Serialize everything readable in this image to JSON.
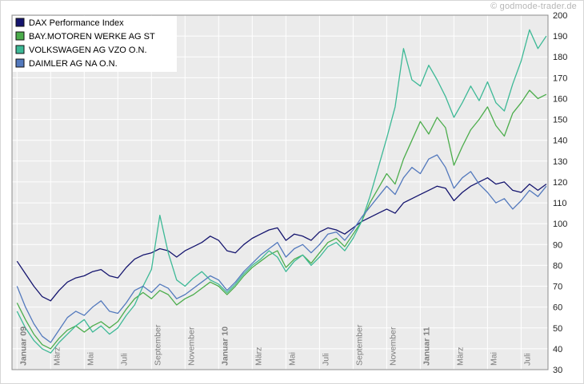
{
  "watermark": "© godmode-trader.de",
  "chart_data": {
    "type": "line",
    "title": "",
    "xlabel": "",
    "ylabel": "",
    "ylim": [
      30,
      200
    ],
    "grid": true,
    "legend_position": "top-left",
    "plot_bg": "#ebebeb",
    "grid_color": "#ffffff",
    "border_color": "#8c8c8c",
    "x_label_color": "#7d7d7d",
    "y_label_color": "#222222",
    "x_unit": "months since Januar 2009 (0 = Januar 09)",
    "y_ticks": [
      30,
      40,
      50,
      60,
      70,
      80,
      90,
      100,
      110,
      120,
      130,
      140,
      150,
      160,
      170,
      180,
      190,
      200
    ],
    "x_ticks": [
      {
        "m": 0,
        "label": "Januar 09",
        "bold": true
      },
      {
        "m": 2,
        "label": "März",
        "bold": false
      },
      {
        "m": 4,
        "label": "Mai",
        "bold": false
      },
      {
        "m": 6,
        "label": "Juli",
        "bold": false
      },
      {
        "m": 8,
        "label": "September",
        "bold": false
      },
      {
        "m": 10,
        "label": "November",
        "bold": false
      },
      {
        "m": 12,
        "label": "Januar 10",
        "bold": true
      },
      {
        "m": 14,
        "label": "März",
        "bold": false
      },
      {
        "m": 16,
        "label": "Mai",
        "bold": false
      },
      {
        "m": 18,
        "label": "Juli",
        "bold": false
      },
      {
        "m": 20,
        "label": "September",
        "bold": false
      },
      {
        "m": 22,
        "label": "November",
        "bold": false
      },
      {
        "m": 24,
        "label": "Januar 11",
        "bold": true
      },
      {
        "m": 26,
        "label": "März",
        "bold": false
      },
      {
        "m": 28,
        "label": "Mai",
        "bold": false
      },
      {
        "m": 30,
        "label": "Juli",
        "bold": false
      }
    ],
    "x": [
      0,
      0.5,
      1,
      1.5,
      2,
      2.5,
      3,
      3.5,
      4,
      4.5,
      5,
      5.5,
      6,
      6.5,
      7,
      7.5,
      8,
      8.5,
      9,
      9.5,
      10,
      10.5,
      11,
      11.5,
      12,
      12.5,
      13,
      13.5,
      14,
      14.5,
      15,
      15.5,
      16,
      16.5,
      17,
      17.5,
      18,
      18.5,
      19,
      19.5,
      20,
      20.5,
      21,
      21.5,
      22,
      22.5,
      23,
      23.5,
      24,
      24.5,
      25,
      25.5,
      26,
      26.5,
      27,
      27.5,
      28,
      28.5,
      29,
      29.5,
      30,
      30.5,
      31,
      31.5
    ],
    "series": [
      {
        "name": "DAX Performance Index",
        "color": "#14146e",
        "values": [
          82,
          76,
          70,
          65,
          63,
          68,
          72,
          74,
          75,
          77,
          78,
          75,
          74,
          79,
          83,
          85,
          86,
          88,
          87,
          84,
          87,
          89,
          91,
          94,
          92,
          87,
          86,
          90,
          93,
          95,
          97,
          98,
          92,
          95,
          94,
          92,
          96,
          98,
          97,
          95,
          98,
          101,
          103,
          105,
          107,
          105,
          110,
          112,
          114,
          116,
          118,
          117,
          111,
          115,
          118,
          120,
          122,
          119,
          120,
          116,
          115,
          119,
          116,
          119
        ]
      },
      {
        "name": "BAY.MOTOREN WERKE AG ST",
        "color": "#4cad4c",
        "values": [
          62,
          54,
          47,
          42,
          40,
          45,
          49,
          51,
          48,
          51,
          53,
          50,
          53,
          59,
          64,
          67,
          64,
          68,
          66,
          61,
          64,
          66,
          69,
          72,
          70,
          66,
          70,
          75,
          79,
          82,
          85,
          87,
          79,
          83,
          85,
          81,
          86,
          91,
          93,
          89,
          95,
          101,
          110,
          117,
          124,
          119,
          131,
          140,
          149,
          143,
          151,
          146,
          128,
          137,
          145,
          150,
          156,
          147,
          142,
          153,
          158,
          164,
          160,
          162
        ]
      },
      {
        "name": "VOLKSWAGEN AG VZO O.N.",
        "color": "#3db996",
        "values": [
          58,
          50,
          44,
          40,
          38,
          43,
          47,
          51,
          54,
          48,
          51,
          47,
          50,
          56,
          61,
          70,
          78,
          104,
          86,
          73,
          70,
          74,
          77,
          73,
          71,
          67,
          71,
          76,
          80,
          83,
          87,
          84,
          77,
          82,
          85,
          80,
          84,
          89,
          91,
          87,
          93,
          101,
          113,
          127,
          141,
          156,
          184,
          169,
          166,
          176,
          169,
          161,
          151,
          158,
          166,
          159,
          168,
          158,
          154,
          167,
          178,
          193,
          184,
          190
        ]
      },
      {
        "name": "DAIMLER AG NA O.N.",
        "color": "#5379bd",
        "values": [
          70,
          60,
          52,
          46,
          43,
          49,
          55,
          58,
          56,
          60,
          63,
          58,
          57,
          62,
          68,
          70,
          67,
          71,
          69,
          64,
          66,
          69,
          72,
          75,
          73,
          68,
          72,
          77,
          81,
          85,
          88,
          91,
          84,
          88,
          90,
          86,
          90,
          95,
          96,
          92,
          97,
          103,
          108,
          113,
          118,
          114,
          122,
          127,
          124,
          131,
          133,
          127,
          117,
          122,
          125,
          119,
          115,
          110,
          112,
          107,
          111,
          116,
          113,
          118
        ]
      }
    ]
  }
}
